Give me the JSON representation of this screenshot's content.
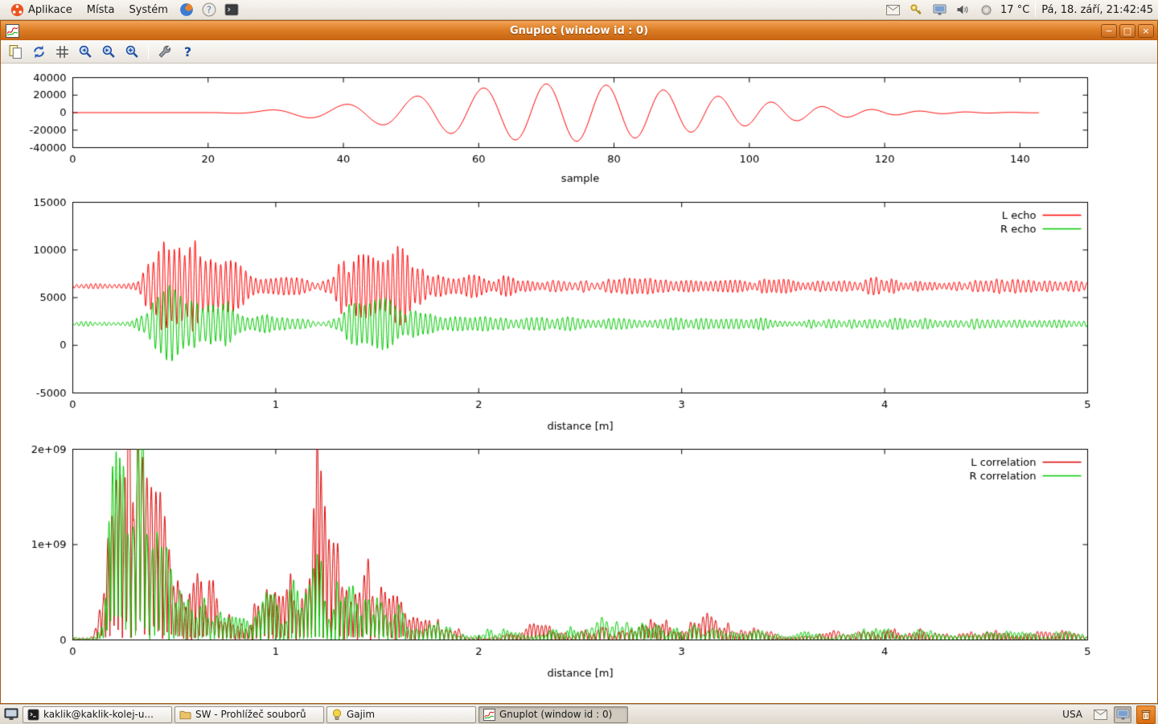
{
  "top_panel": {
    "menus": [
      {
        "label": "Aplikace"
      },
      {
        "label": "Místa"
      },
      {
        "label": "Systém"
      }
    ],
    "temperature": "17 °C",
    "clock": "Pá, 18. září, 21:42:45"
  },
  "window": {
    "title": "Gnuplot (window id : 0)",
    "toolbar_help_glyph": "?"
  },
  "taskbar": {
    "windows": [
      {
        "label": "kaklik@kaklik-kolej-u...",
        "icon": "terminal-icon",
        "active": false
      },
      {
        "label": "SW - Prohlížeč souborů",
        "icon": "folder-icon",
        "active": false
      },
      {
        "label": "Gajim",
        "icon": "gajim-icon",
        "active": false
      },
      {
        "label": "Gnuplot (window id : 0)",
        "icon": "gnuplot-icon",
        "active": true
      }
    ],
    "keyboard_layout": "USA"
  },
  "icons": {
    "panel_left": [
      "ubuntu-logo-icon",
      "firefox-icon",
      "help-browser-icon",
      "terminal-launcher-icon"
    ],
    "panel_right": [
      "mail-icon",
      "keyring-icon",
      "display-icon",
      "volume-icon",
      "weather-icon"
    ],
    "toolbar": [
      "copy-icon",
      "replot-icon",
      "grid-icon",
      "zoom-previous-icon",
      "zoom-next-icon",
      "autoscale-icon",
      "configure-icon",
      "help-icon"
    ],
    "window_controls": [
      "minimize-icon",
      "maximize-icon",
      "close-icon"
    ],
    "taskbar": [
      "show-desktop-icon",
      "terminal-icon",
      "folder-icon",
      "gajim-icon",
      "gnuplot-icon",
      "mail-notification-icon",
      "display-settings-icon",
      "trash-icon"
    ]
  },
  "colors": {
    "titlebar": "#D4731C",
    "plot_red": "#FF0000",
    "plot_green": "#00C800",
    "panel_bg": "#EDE9E3"
  },
  "chart_data": [
    {
      "type": "line",
      "title": "",
      "xlabel": "sample",
      "ylabel": "",
      "xlim": [
        0,
        150
      ],
      "ylim": [
        -40000,
        40000
      ],
      "xticks": [
        0,
        20,
        40,
        60,
        80,
        100,
        120,
        140
      ],
      "yticks": [
        -40000,
        -20000,
        0,
        20000,
        40000
      ],
      "grid": false,
      "legend_position": "none",
      "series": [
        {
          "name": "",
          "color": "#ff0000",
          "kind": "chirp",
          "seed": 1,
          "x_end": 143,
          "envelope": {
            "center": 72,
            "sigma_left": 20,
            "sigma_right": 22,
            "peak": 33000
          },
          "freq_base": 0.092,
          "freq_slope": 0.0006,
          "freq_ref": 40
        }
      ]
    },
    {
      "type": "line",
      "title": "",
      "xlabel": "distance [m]",
      "ylabel": "",
      "xlim": [
        0,
        5
      ],
      "ylim": [
        -5000,
        15000
      ],
      "xticks": [
        0,
        1,
        2,
        3,
        4,
        5
      ],
      "yticks": [
        -5000,
        0,
        5000,
        10000,
        15000
      ],
      "grid": false,
      "legend_position": "top-right",
      "series": [
        {
          "name": "L echo",
          "color": "#ff0000",
          "kind": "echo",
          "seed": 101,
          "baseline": 6200,
          "carrier_freq": 40,
          "noise_amp": 230,
          "bursts": [
            [
              0.38,
              0.04,
              1500
            ],
            [
              0.46,
              0.04,
              2600
            ],
            [
              0.55,
              0.055,
              4800
            ],
            [
              0.68,
              0.05,
              2600
            ],
            [
              0.78,
              0.05,
              1500
            ],
            [
              0.9,
              0.06,
              800
            ],
            [
              1.05,
              0.08,
              600
            ],
            [
              1.35,
              0.05,
              1800
            ],
            [
              1.5,
              0.09,
              3200
            ],
            [
              1.65,
              0.06,
              1900
            ],
            [
              1.8,
              0.06,
              900
            ],
            [
              1.95,
              0.08,
              700
            ],
            [
              2.15,
              0.1,
              500
            ],
            [
              2.45,
              0.12,
              420
            ],
            [
              2.75,
              0.12,
              380
            ],
            [
              3.05,
              0.12,
              430
            ],
            [
              3.35,
              0.12,
              350
            ],
            [
              3.7,
              0.15,
              320
            ],
            [
              4.05,
              0.12,
              380
            ],
            [
              4.4,
              0.15,
              300
            ],
            [
              4.8,
              0.2,
              300
            ]
          ]
        },
        {
          "name": "R echo",
          "color": "#00c800",
          "kind": "echo",
          "seed": 202,
          "baseline": 2250,
          "carrier_freq": 40,
          "noise_amp": 200,
          "bursts": [
            [
              0.38,
              0.04,
              1100
            ],
            [
              0.46,
              0.04,
              1900
            ],
            [
              0.55,
              0.055,
              3600
            ],
            [
              0.68,
              0.05,
              2000
            ],
            [
              0.78,
              0.05,
              1100
            ],
            [
              0.9,
              0.06,
              600
            ],
            [
              1.05,
              0.08,
              450
            ],
            [
              1.35,
              0.05,
              1000
            ],
            [
              1.5,
              0.09,
              1800
            ],
            [
              1.65,
              0.06,
              1000
            ],
            [
              1.8,
              0.06,
              550
            ],
            [
              1.95,
              0.08,
              450
            ],
            [
              2.15,
              0.1,
              350
            ],
            [
              2.45,
              0.12,
              300
            ],
            [
              2.75,
              0.12,
              280
            ],
            [
              3.05,
              0.12,
              300
            ],
            [
              3.35,
              0.12,
              260
            ],
            [
              3.7,
              0.15,
              240
            ],
            [
              4.05,
              0.12,
              280
            ],
            [
              4.4,
              0.15,
              230
            ],
            [
              4.8,
              0.2,
              230
            ]
          ]
        }
      ]
    },
    {
      "type": "line",
      "title": "",
      "xlabel": "distance [m]",
      "ylabel": "",
      "xlim": [
        0,
        5
      ],
      "ylim": [
        0,
        2000000000
      ],
      "xticks": [
        0,
        1,
        2,
        3,
        4,
        5
      ],
      "yticks": [
        0,
        1000000000,
        2000000000
      ],
      "ytick_labels": [
        "0",
        "1e+09",
        "2e+09"
      ],
      "grid": false,
      "legend_position": "top-right",
      "series": [
        {
          "name": "L correlation",
          "color": "#dd0000",
          "kind": "correlation",
          "seed": 303,
          "carrier_freq": 25,
          "floor": 0.025,
          "envelope_gaussians": [
            [
              0.18,
              0.03,
              1.3
            ],
            [
              0.24,
              0.03,
              2.2
            ],
            [
              0.3,
              0.035,
              2.3
            ],
            [
              0.38,
              0.04,
              1.6
            ],
            [
              0.45,
              0.04,
              1.0
            ],
            [
              0.52,
              0.04,
              0.5
            ],
            [
              0.62,
              0.05,
              0.55
            ],
            [
              0.72,
              0.05,
              0.45
            ],
            [
              0.95,
              0.08,
              0.45
            ],
            [
              1.08,
              0.05,
              0.5
            ],
            [
              1.2,
              0.035,
              2.0
            ],
            [
              1.3,
              0.04,
              0.9
            ],
            [
              1.42,
              0.06,
              0.85
            ],
            [
              1.55,
              0.05,
              0.6
            ],
            [
              1.7,
              0.06,
              0.3
            ],
            [
              1.85,
              0.06,
              0.15
            ],
            [
              2.3,
              0.1,
              0.13
            ],
            [
              2.6,
              0.08,
              0.1
            ],
            [
              2.85,
              0.08,
              0.18
            ],
            [
              3.1,
              0.09,
              0.28
            ],
            [
              3.35,
              0.08,
              0.12
            ],
            [
              3.8,
              0.1,
              0.08
            ],
            [
              4.1,
              0.1,
              0.1
            ],
            [
              4.5,
              0.15,
              0.07
            ],
            [
              4.85,
              0.1,
              0.06
            ]
          ]
        },
        {
          "name": "R correlation",
          "color": "#00c800",
          "kind": "correlation",
          "seed": 404,
          "carrier_freq": 25,
          "floor": 0.025,
          "envelope_gaussians": [
            [
              0.2,
              0.03,
              1.4
            ],
            [
              0.27,
              0.035,
              1.9
            ],
            [
              0.33,
              0.035,
              1.7
            ],
            [
              0.42,
              0.05,
              1.2
            ],
            [
              0.52,
              0.04,
              0.5
            ],
            [
              0.63,
              0.05,
              0.4
            ],
            [
              0.75,
              0.05,
              0.3
            ],
            [
              0.95,
              0.08,
              0.4
            ],
            [
              1.1,
              0.05,
              0.45
            ],
            [
              1.2,
              0.035,
              0.75
            ],
            [
              1.32,
              0.05,
              0.55
            ],
            [
              1.45,
              0.06,
              0.5
            ],
            [
              1.6,
              0.05,
              0.3
            ],
            [
              1.8,
              0.07,
              0.18
            ],
            [
              2.1,
              0.08,
              0.12
            ],
            [
              2.4,
              0.08,
              0.12
            ],
            [
              2.62,
              0.07,
              0.18
            ],
            [
              2.8,
              0.07,
              0.2
            ],
            [
              3.05,
              0.08,
              0.12
            ],
            [
              3.3,
              0.09,
              0.1
            ],
            [
              3.6,
              0.08,
              0.07
            ],
            [
              3.95,
              0.1,
              0.09
            ],
            [
              4.25,
              0.1,
              0.1
            ],
            [
              4.6,
              0.12,
              0.07
            ],
            [
              4.9,
              0.1,
              0.06
            ]
          ]
        }
      ]
    }
  ]
}
